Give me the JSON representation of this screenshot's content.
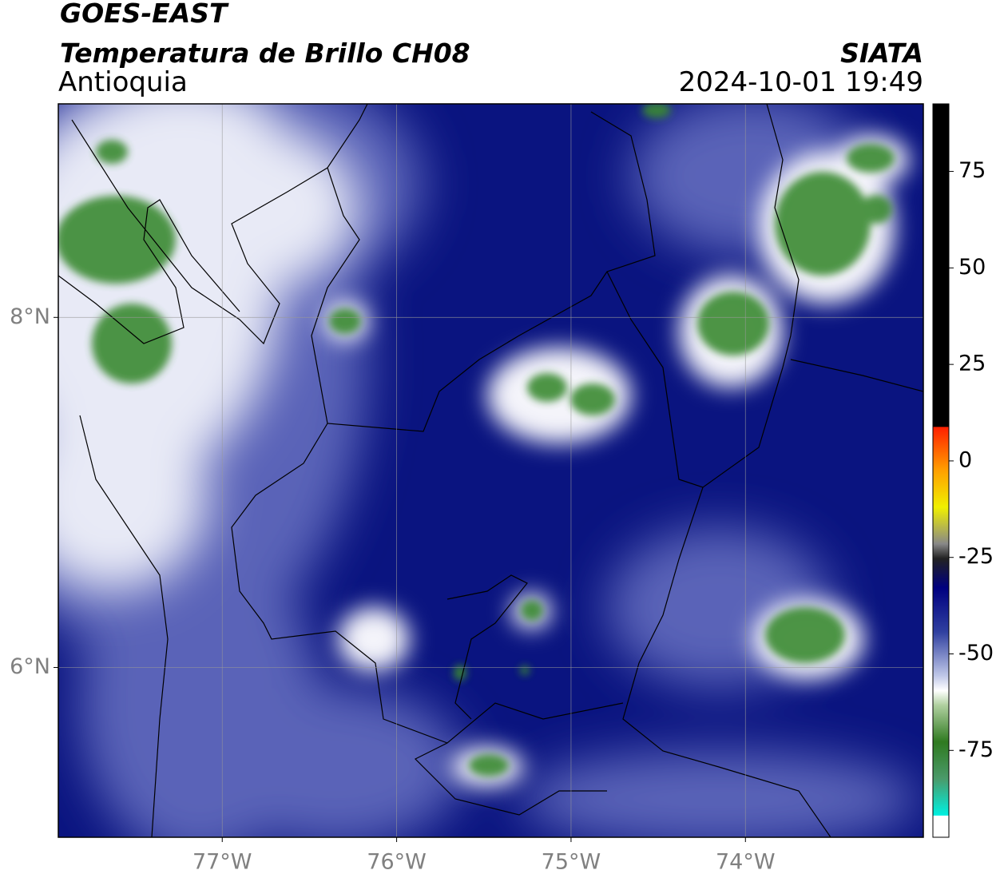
{
  "header": {
    "title": "GOES-EAST",
    "subtitle": "Temperatura de Brillo CH08",
    "region": "Antioquia",
    "source": "SIATA",
    "timestamp": "2024-10-01 19:49"
  },
  "map": {
    "xlim": [
      -77.94,
      -72.98
    ],
    "ylim": [
      5.03,
      9.22
    ],
    "xticks": [
      {
        "value": -77,
        "label": "77°W"
      },
      {
        "value": -76,
        "label": "76°W"
      },
      {
        "value": -75,
        "label": "75°W"
      },
      {
        "value": -74,
        "label": "74°W"
      }
    ],
    "yticks": [
      {
        "value": 8,
        "label": "8°N"
      },
      {
        "value": 6,
        "label": "6°N"
      }
    ],
    "grid": true
  },
  "colorbar": {
    "range": [
      -97.5,
      92.5
    ],
    "ticks": [
      75,
      50,
      25,
      0,
      -25,
      -50,
      -75
    ]
  }
}
